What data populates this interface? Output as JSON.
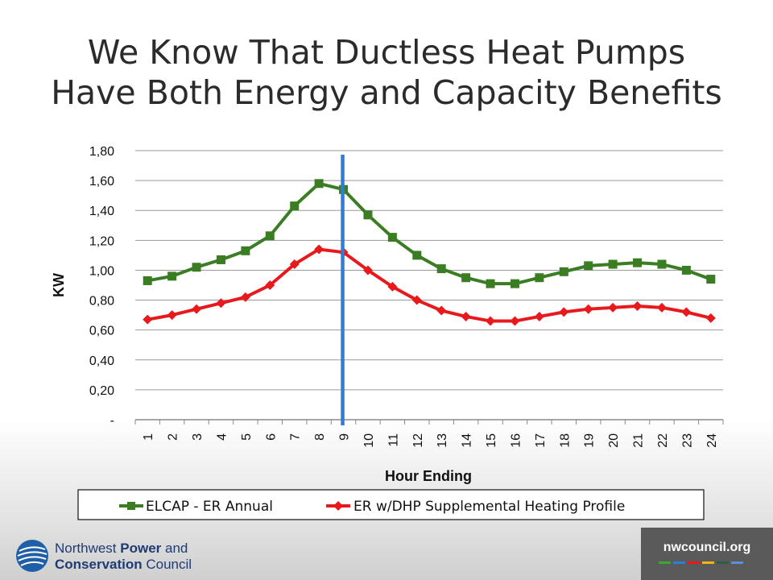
{
  "slide": {
    "title_line1": "We Know That Ductless Heat Pumps",
    "title_line2": "Have Both Energy and Capacity Benefits"
  },
  "chart_data": {
    "type": "line",
    "xlabel": "Hour Ending",
    "ylabel": "KW",
    "x": [
      1,
      2,
      3,
      4,
      5,
      6,
      7,
      8,
      9,
      10,
      11,
      12,
      13,
      14,
      15,
      16,
      17,
      18,
      19,
      20,
      21,
      22,
      23,
      24
    ],
    "y_tick_labels": [
      "-",
      "0,20",
      "0,40",
      "0,60",
      "0,80",
      "1,00",
      "1,20",
      "1,40",
      "1,60",
      "1,80"
    ],
    "ylim": [
      0,
      1.8
    ],
    "grid": true,
    "legend_position": "bottom",
    "vertical_marker_x": 9,
    "series": [
      {
        "name": "ELCAP - ER Annual",
        "color": "#3a7d22",
        "marker": "square",
        "values": [
          0.93,
          0.96,
          1.02,
          1.07,
          1.13,
          1.23,
          1.43,
          1.58,
          1.54,
          1.37,
          1.22,
          1.1,
          1.01,
          0.95,
          0.91,
          0.91,
          0.95,
          0.99,
          1.03,
          1.04,
          1.05,
          1.04,
          1.0,
          0.94
        ]
      },
      {
        "name": "ER w/DHP Supplemental Heating Profile",
        "color": "#e8191d",
        "marker": "diamond",
        "values": [
          0.67,
          0.7,
          0.74,
          0.78,
          0.82,
          0.9,
          1.04,
          1.14,
          1.12,
          1.0,
          0.89,
          0.8,
          0.73,
          0.69,
          0.66,
          0.66,
          0.69,
          0.72,
          0.74,
          0.75,
          0.76,
          0.75,
          0.72,
          0.68
        ]
      }
    ],
    "marker_line_color": "#2e7ed3"
  },
  "footer": {
    "org_line1_regular": "Northwest ",
    "org_line1_bold": "Power",
    "org_line1_tail": " and",
    "org_line2_bold": "Conservation",
    "org_line2_tail": " Council",
    "site": "nwcouncil.org",
    "site_bar_colors": [
      "#3fa535",
      "#2e7ed3",
      "#e8191d",
      "#f1b51c",
      "#2f5e48",
      "#5b8fd6"
    ]
  }
}
